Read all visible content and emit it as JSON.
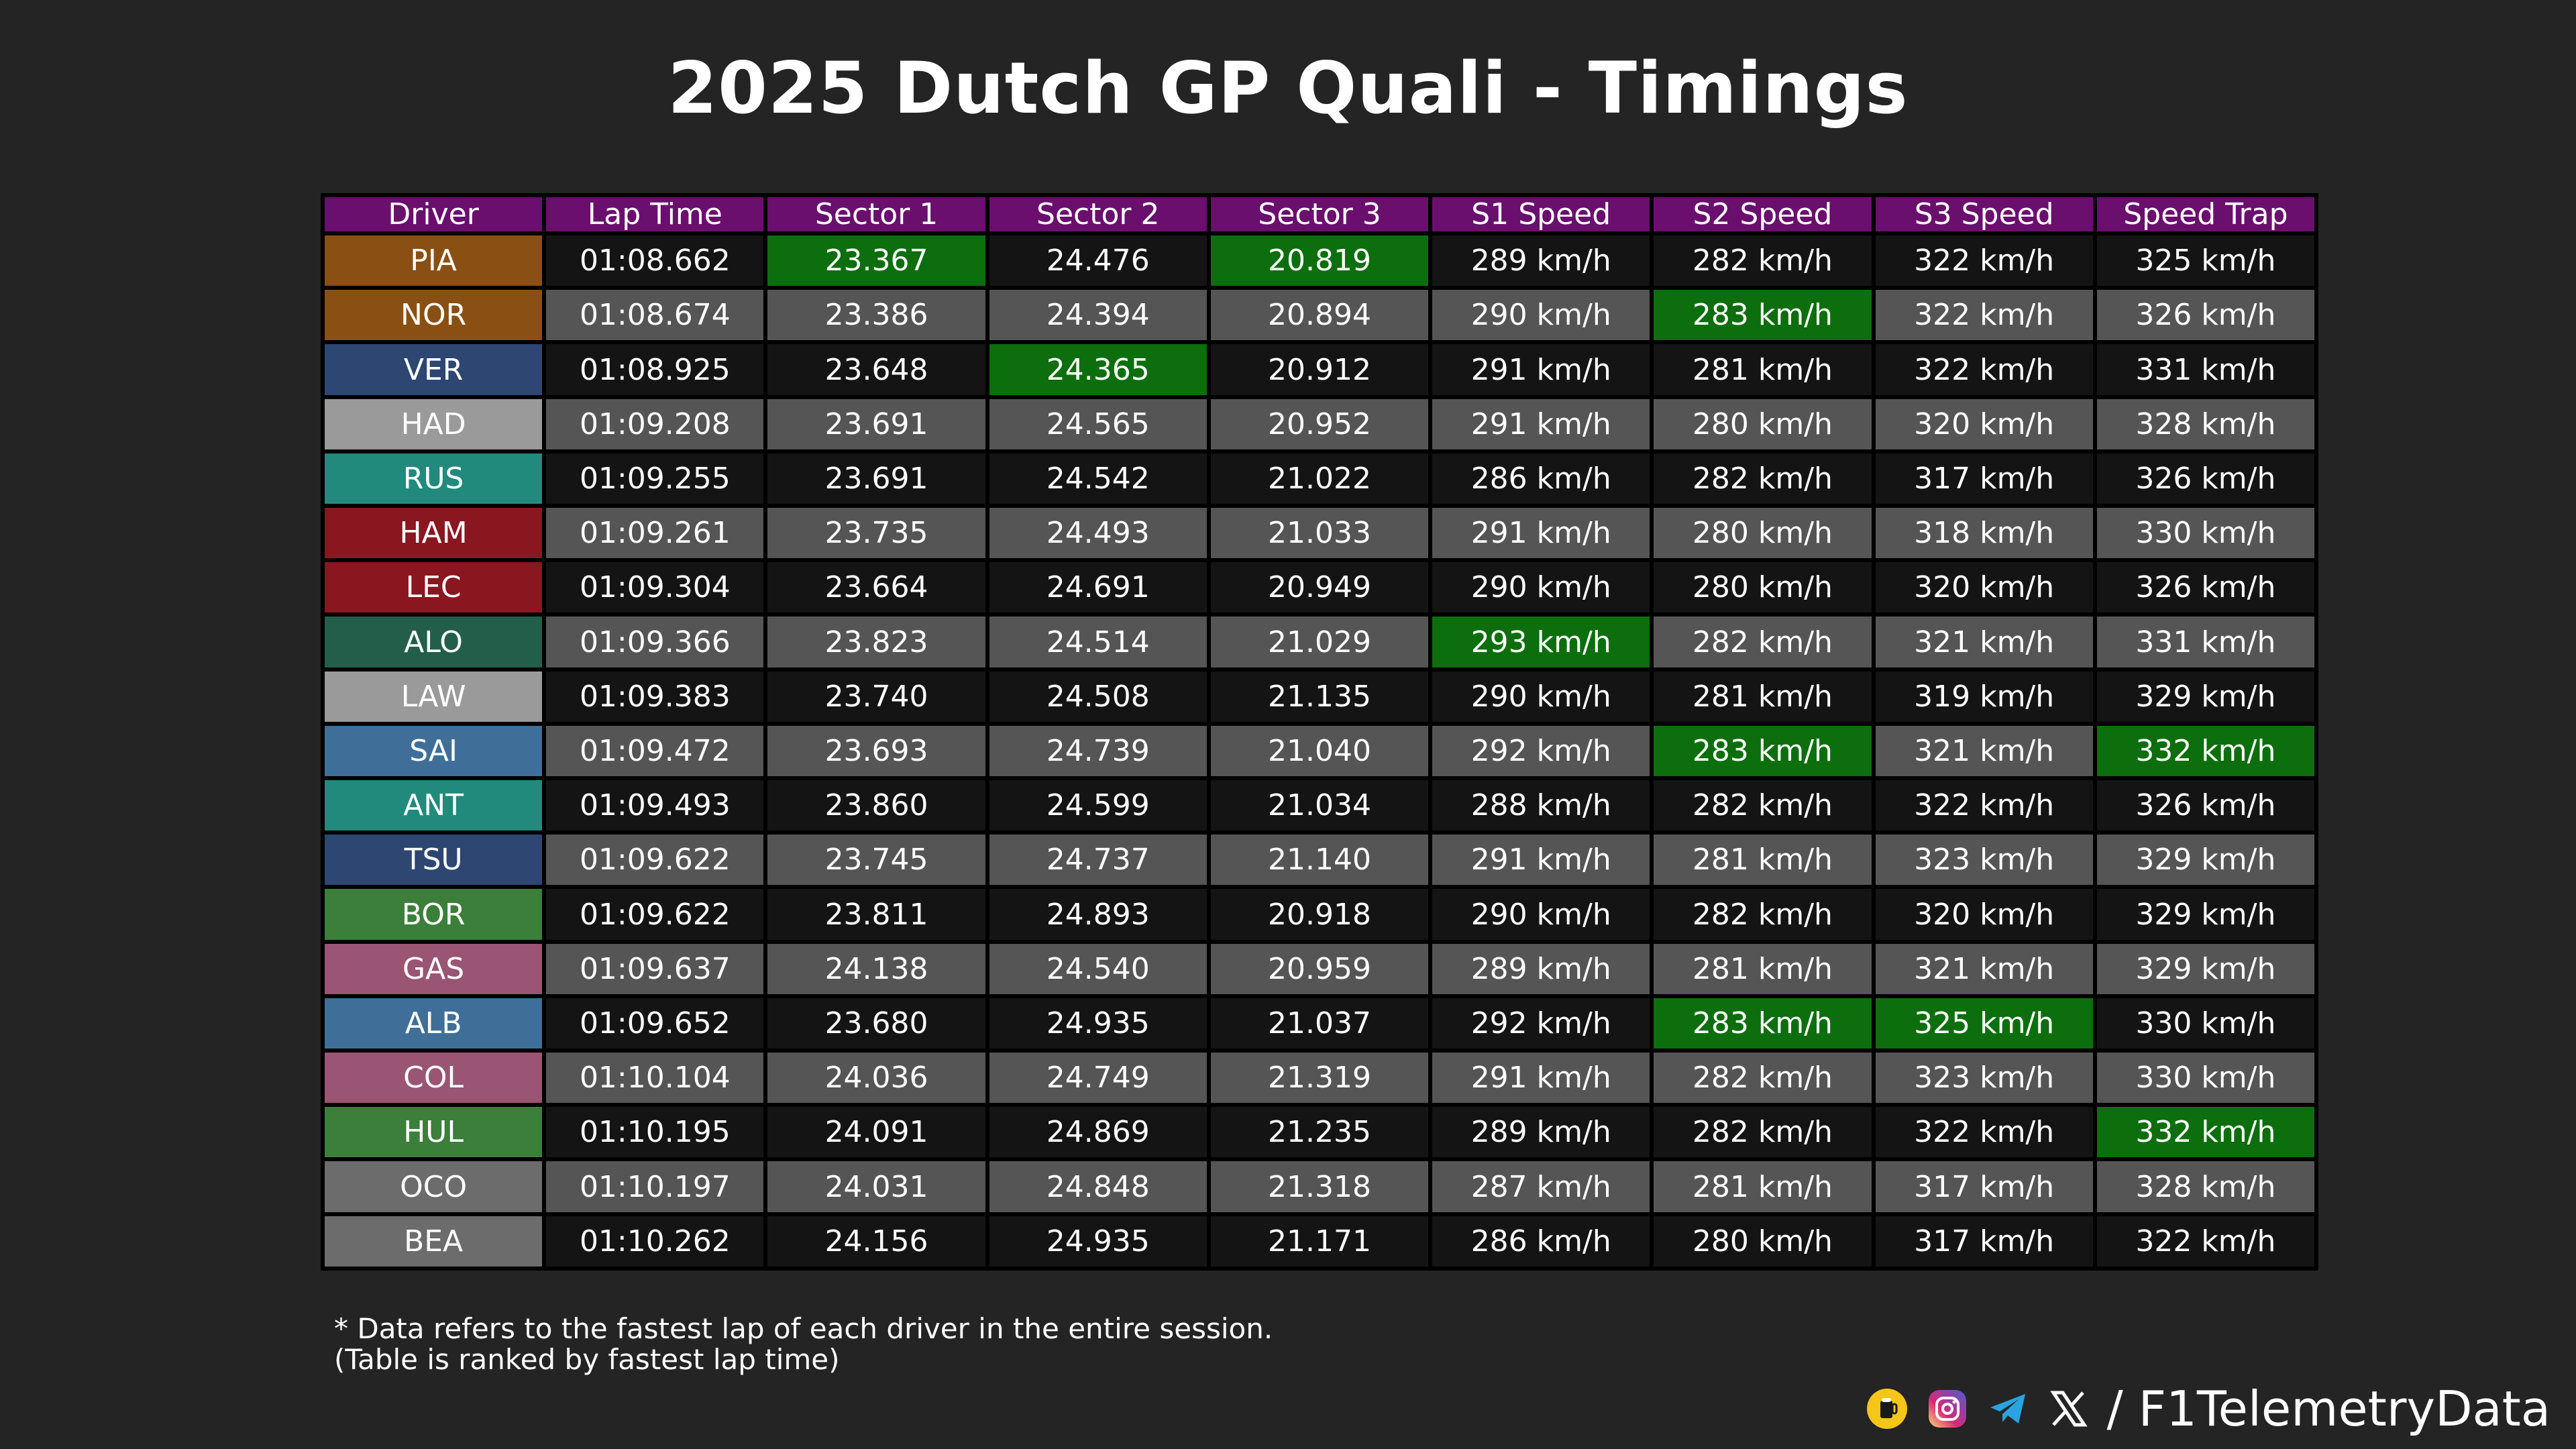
{
  "title": "2025 Dutch GP Quali - Timings",
  "watermark": "@F1TelemetryData",
  "footnote": {
    "line1": "* Data refers to the fastest lap of each driver in the entire session.",
    "line2": "(Table is ranked by fastest lap time)"
  },
  "social": {
    "handle": "/ F1TelemetryData",
    "icons": [
      "beer-icon",
      "instagram-icon",
      "telegram-icon",
      "x-icon"
    ]
  },
  "colors": {
    "header": "#6a0f6e",
    "row_dark": "#141414",
    "row_light": "#555555",
    "best": "#0d6e0d",
    "background": "#242424"
  },
  "chart_data": {
    "type": "table",
    "title": "2025 Dutch GP Quali - Timings",
    "columns": [
      "Driver",
      "Lap Time",
      "Sector 1",
      "Sector 2",
      "Sector 3",
      "S1 Speed",
      "S2 Speed",
      "S3 Speed",
      "Speed Trap"
    ],
    "rows": [
      {
        "driver": "PIA",
        "color": "#8a4f13",
        "cells": [
          "01:08.662",
          "23.367",
          "24.476",
          "20.819",
          "289 km/h",
          "282 km/h",
          "322 km/h",
          "325 km/h"
        ],
        "best": [
          1,
          3
        ]
      },
      {
        "driver": "NOR",
        "color": "#8a4f13",
        "cells": [
          "01:08.674",
          "23.386",
          "24.394",
          "20.894",
          "290 km/h",
          "283 km/h",
          "322 km/h",
          "326 km/h"
        ],
        "best": [
          5
        ]
      },
      {
        "driver": "VER",
        "color": "#2d4672",
        "cells": [
          "01:08.925",
          "23.648",
          "24.365",
          "20.912",
          "291 km/h",
          "281 km/h",
          "322 km/h",
          "331 km/h"
        ],
        "best": [
          2
        ]
      },
      {
        "driver": "HAD",
        "color": "#9a9a9a",
        "cells": [
          "01:09.208",
          "23.691",
          "24.565",
          "20.952",
          "291 km/h",
          "280 km/h",
          "320 km/h",
          "328 km/h"
        ],
        "best": []
      },
      {
        "driver": "RUS",
        "color": "#218a7c",
        "cells": [
          "01:09.255",
          "23.691",
          "24.542",
          "21.022",
          "286 km/h",
          "282 km/h",
          "317 km/h",
          "326 km/h"
        ],
        "best": []
      },
      {
        "driver": "HAM",
        "color": "#8a1620",
        "cells": [
          "01:09.261",
          "23.735",
          "24.493",
          "21.033",
          "291 km/h",
          "280 km/h",
          "318 km/h",
          "330 km/h"
        ],
        "best": []
      },
      {
        "driver": "LEC",
        "color": "#8a1620",
        "cells": [
          "01:09.304",
          "23.664",
          "24.691",
          "20.949",
          "290 km/h",
          "280 km/h",
          "320 km/h",
          "326 km/h"
        ],
        "best": []
      },
      {
        "driver": "ALO",
        "color": "#235e4a",
        "cells": [
          "01:09.366",
          "23.823",
          "24.514",
          "21.029",
          "293 km/h",
          "282 km/h",
          "321 km/h",
          "331 km/h"
        ],
        "best": [
          4
        ]
      },
      {
        "driver": "LAW",
        "color": "#9a9a9a",
        "cells": [
          "01:09.383",
          "23.740",
          "24.508",
          "21.135",
          "290 km/h",
          "281 km/h",
          "319 km/h",
          "329 km/h"
        ],
        "best": []
      },
      {
        "driver": "SAI",
        "color": "#3f6f98",
        "cells": [
          "01:09.472",
          "23.693",
          "24.739",
          "21.040",
          "292 km/h",
          "283 km/h",
          "321 km/h",
          "332 km/h"
        ],
        "best": [
          5,
          7
        ]
      },
      {
        "driver": "ANT",
        "color": "#218a7c",
        "cells": [
          "01:09.493",
          "23.860",
          "24.599",
          "21.034",
          "288 km/h",
          "282 km/h",
          "322 km/h",
          "326 km/h"
        ],
        "best": []
      },
      {
        "driver": "TSU",
        "color": "#2d4672",
        "cells": [
          "01:09.622",
          "23.745",
          "24.737",
          "21.140",
          "291 km/h",
          "281 km/h",
          "323 km/h",
          "329 km/h"
        ],
        "best": []
      },
      {
        "driver": "BOR",
        "color": "#3b7f3a",
        "cells": [
          "01:09.622",
          "23.811",
          "24.893",
          "20.918",
          "290 km/h",
          "282 km/h",
          "320 km/h",
          "329 km/h"
        ],
        "best": []
      },
      {
        "driver": "GAS",
        "color": "#9a5574",
        "cells": [
          "01:09.637",
          "24.138",
          "24.540",
          "20.959",
          "289 km/h",
          "281 km/h",
          "321 km/h",
          "329 km/h"
        ],
        "best": []
      },
      {
        "driver": "ALB",
        "color": "#3f6f98",
        "cells": [
          "01:09.652",
          "23.680",
          "24.935",
          "21.037",
          "292 km/h",
          "283 km/h",
          "325 km/h",
          "330 km/h"
        ],
        "best": [
          5,
          6
        ]
      },
      {
        "driver": "COL",
        "color": "#9a5574",
        "cells": [
          "01:10.104",
          "24.036",
          "24.749",
          "21.319",
          "291 km/h",
          "282 km/h",
          "323 km/h",
          "330 km/h"
        ],
        "best": []
      },
      {
        "driver": "HUL",
        "color": "#3b7f3a",
        "cells": [
          "01:10.195",
          "24.091",
          "24.869",
          "21.235",
          "289 km/h",
          "282 km/h",
          "322 km/h",
          "332 km/h"
        ],
        "best": [
          7
        ]
      },
      {
        "driver": "OCO",
        "color": "#6c6c6c",
        "cells": [
          "01:10.197",
          "24.031",
          "24.848",
          "21.318",
          "287 km/h",
          "281 km/h",
          "317 km/h",
          "328 km/h"
        ],
        "best": []
      },
      {
        "driver": "BEA",
        "color": "#6c6c6c",
        "cells": [
          "01:10.262",
          "24.156",
          "24.935",
          "21.171",
          "286 km/h",
          "280 km/h",
          "317 km/h",
          "322 km/h"
        ],
        "best": []
      }
    ]
  }
}
